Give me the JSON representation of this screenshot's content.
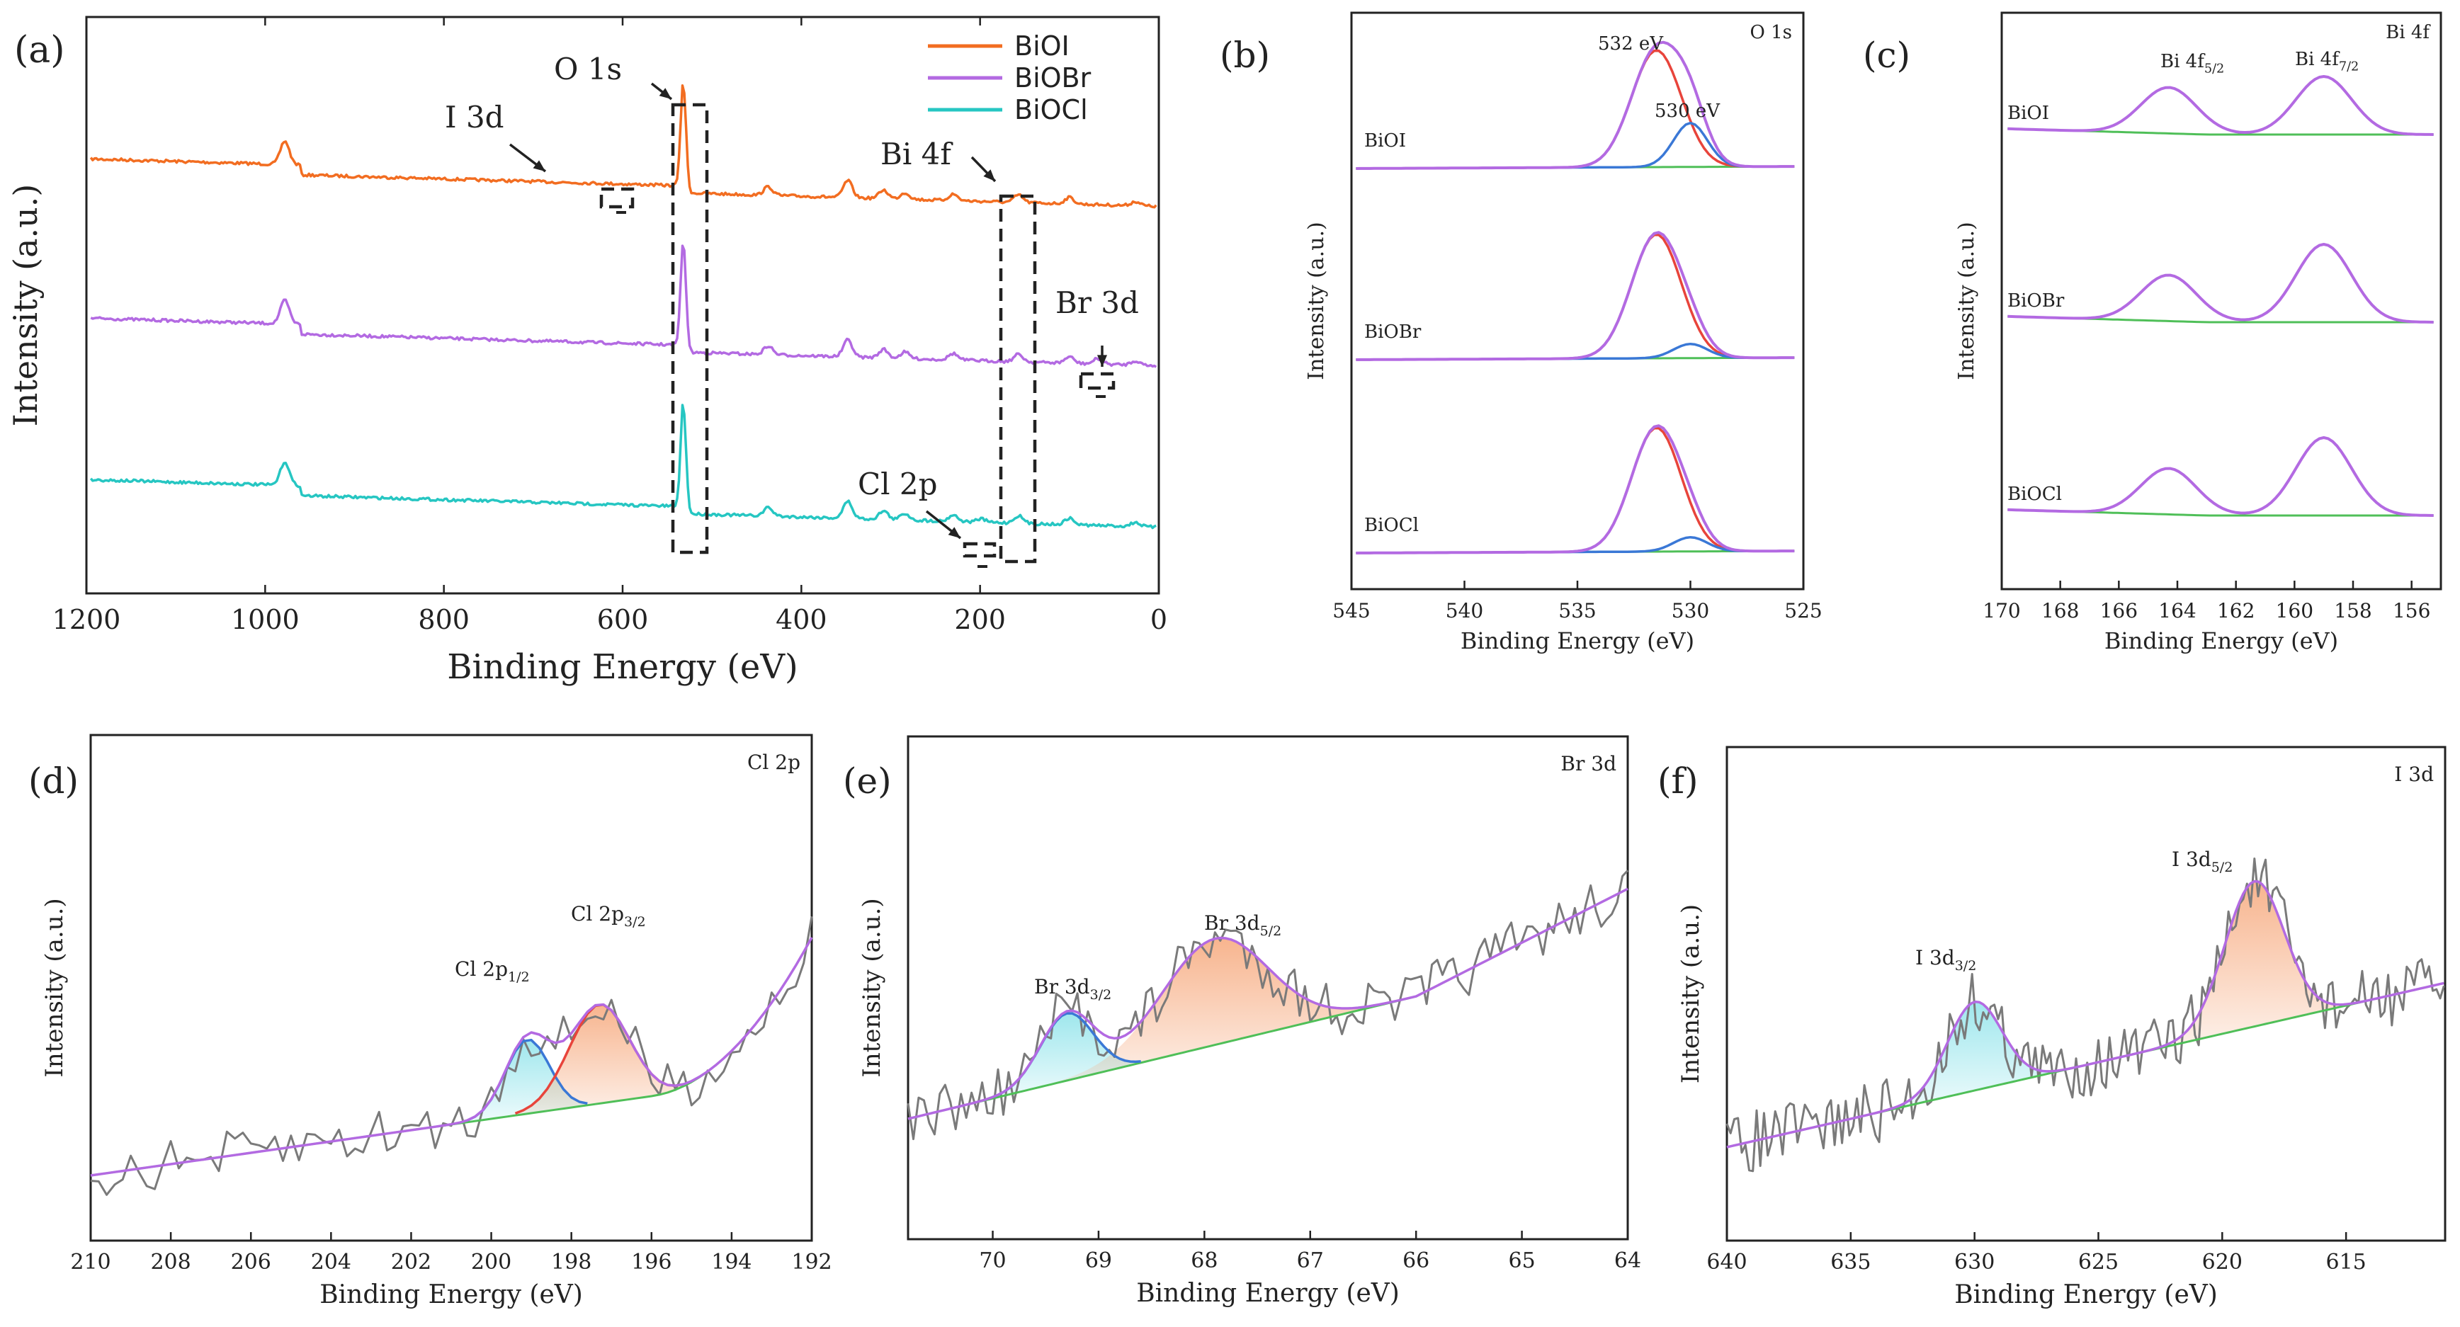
{
  "chart_data": [
    {
      "panel": "(a)",
      "type": "line",
      "xlabel": "Binding Energy (eV)",
      "ylabel": "Intensity (a.u.)",
      "xlim": [
        1200,
        0
      ],
      "xticks": [
        1200,
        1000,
        800,
        600,
        400,
        200,
        0
      ],
      "series": [
        {
          "name": "BiOI",
          "color": "#f26d21",
          "offset": 2.0,
          "peaks": [
            [
              978,
              0.22
            ],
            [
              532,
              1.0
            ],
            [
              437,
              0.08
            ],
            [
              348,
              0.16
            ],
            [
              308,
              0.08
            ],
            [
              284,
              0.06
            ],
            [
              230,
              0.06
            ],
            [
              157,
              0.07
            ],
            [
              100,
              0.06
            ],
            [
              26,
              0.04
            ]
          ]
        },
        {
          "name": "BiOBr",
          "color": "#b36ae2",
          "offset": 1.0,
          "peaks": [
            [
              978,
              0.22
            ],
            [
              532,
              1.0
            ],
            [
              437,
              0.08
            ],
            [
              348,
              0.16
            ],
            [
              308,
              0.08
            ],
            [
              284,
              0.06
            ],
            [
              230,
              0.06
            ],
            [
              157,
              0.07
            ],
            [
              100,
              0.06
            ],
            [
              68,
              0.05
            ],
            [
              26,
              0.04
            ]
          ]
        },
        {
          "name": "BiOCl",
          "color": "#26c6c2",
          "offset": 0.0,
          "peaks": [
            [
              978,
              0.22
            ],
            [
              532,
              1.0
            ],
            [
              437,
              0.08
            ],
            [
              348,
              0.16
            ],
            [
              308,
              0.08
            ],
            [
              284,
              0.06
            ],
            [
              230,
              0.06
            ],
            [
              199,
              0.03
            ],
            [
              157,
              0.07
            ],
            [
              100,
              0.06
            ],
            [
              26,
              0.04
            ]
          ]
        }
      ],
      "annotations": [
        "O 1s",
        "I 3d",
        "Bi 4f",
        "Br 3d",
        "Cl 2p"
      ],
      "legend": "top-right"
    },
    {
      "panel": "(b)",
      "type": "line",
      "title": "O 1s",
      "xlabel": "Binding Energy (eV)",
      "ylabel": "Intensity (a.u.)",
      "xlim": [
        545,
        525
      ],
      "xticks": [
        545,
        540,
        535,
        530,
        525
      ],
      "samples": [
        "BiOI",
        "BiOBr",
        "BiOCl"
      ],
      "peaks": [
        {
          "label": "532 eV",
          "center": 531.5
        },
        {
          "label": "530 eV",
          "center": 530.0
        }
      ]
    },
    {
      "panel": "(c)",
      "type": "line",
      "title": "Bi 4f",
      "xlabel": "Binding Energy (eV)",
      "ylabel": "Intensity (a.u.)",
      "xlim": [
        170,
        155
      ],
      "xticks": [
        170,
        168,
        166,
        164,
        162,
        160,
        158,
        156
      ],
      "samples": [
        "BiOI",
        "BiOBr",
        "BiOCl"
      ],
      "peaks": [
        {
          "label": "Bi 4f",
          "sub": "5/2",
          "center": 164.3
        },
        {
          "label": "Bi 4f",
          "sub": "7/2",
          "center": 159.0
        }
      ]
    },
    {
      "panel": "(d)",
      "type": "line",
      "title": "Cl 2p",
      "xlabel": "Binding Energy (eV)",
      "ylabel": "Intensity (a.u.)",
      "xlim": [
        210,
        192
      ],
      "xticks": [
        210,
        208,
        206,
        204,
        202,
        200,
        198,
        196,
        194,
        192
      ],
      "peaks": [
        {
          "label": "Cl 2p",
          "sub": "1/2",
          "center": 199.1
        },
        {
          "label": "Cl 2p",
          "sub": "3/2",
          "center": 197.3
        }
      ]
    },
    {
      "panel": "(e)",
      "type": "line",
      "title": "Br 3d",
      "xlabel": "Binding Energy (eV)",
      "ylabel": "Intensity (a.u.)",
      "xlim": [
        70.8,
        64
      ],
      "xticks": [
        70,
        69,
        68,
        67,
        66,
        65,
        64
      ],
      "peaks": [
        {
          "label": "Br 3d",
          "sub": "3/2",
          "center": 69.3
        },
        {
          "label": "Br 3d",
          "sub": "5/2",
          "center": 67.9
        }
      ]
    },
    {
      "panel": "(f)",
      "type": "line",
      "title": "I 3d",
      "xlabel": "Binding Energy (eV)",
      "ylabel": "Intensity (a.u.)",
      "xlim": [
        640,
        611
      ],
      "xticks": [
        640,
        635,
        630,
        625,
        620,
        615
      ],
      "peaks": [
        {
          "label": "I 3d",
          "sub": "3/2",
          "center": 630.0
        },
        {
          "label": "I 3d",
          "sub": "5/2",
          "center": 618.7
        }
      ]
    }
  ],
  "colors": {
    "orange": "#f26d21",
    "purple": "#b36ae2",
    "cyan": "#26c6c2",
    "red": "#e8443b",
    "blue": "#3a78d6",
    "green": "#4fbf58",
    "gray": "#7a7a7a",
    "fill_cyan": "#8ee3ea",
    "fill_orange": "#f6a77a"
  }
}
